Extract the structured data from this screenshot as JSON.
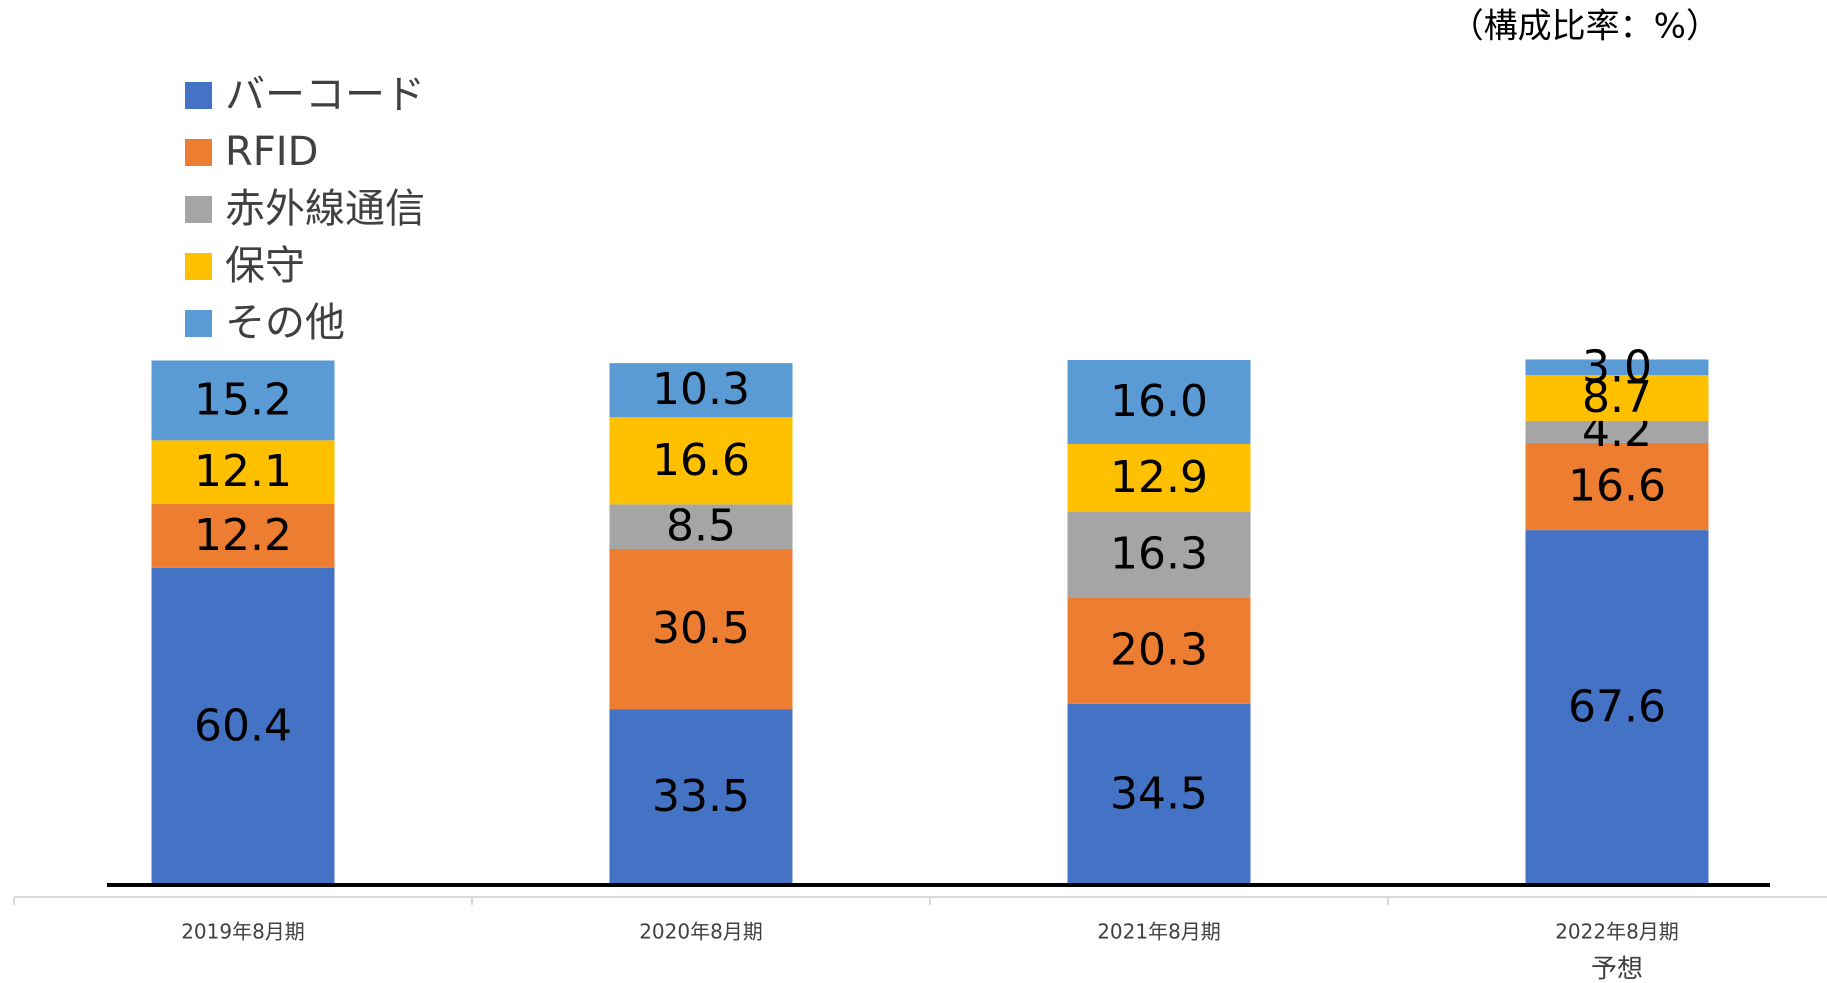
{
  "chart_data": {
    "type": "stacked_bar",
    "unit_label": "（構成比率：%）",
    "categories": [
      "2019年8月期",
      "2020年8月期",
      "2021年8月期",
      "2022年8月期"
    ],
    "annotations": [
      "予想"
    ],
    "ylim": [
      0,
      100
    ],
    "series": [
      {
        "name": "バーコード",
        "color": "#4472c4",
        "values": [
          60.4,
          33.5,
          34.5,
          67.6
        ],
        "value_labels": [
          "60.4",
          "33.5",
          "34.5",
          "67.6"
        ]
      },
      {
        "name": "RFID",
        "color": "#ed7d31",
        "values": [
          12.2,
          30.5,
          20.3,
          16.6
        ],
        "value_labels": [
          "12.2",
          "30.5",
          "20.3",
          "16.6"
        ]
      },
      {
        "name": "赤外線通信",
        "color": "#a5a5a5",
        "values": [
          null,
          8.5,
          16.3,
          4.2
        ],
        "value_labels": [
          null,
          "8.5",
          "16.3",
          "4.2"
        ]
      },
      {
        "name": "保守",
        "color": "#ffc000",
        "values": [
          12.1,
          16.6,
          12.9,
          8.7
        ],
        "value_labels": [
          "12.1",
          "16.6",
          "12.9",
          "8.7"
        ]
      },
      {
        "name": "その他",
        "color": "#5b9bd5",
        "values": [
          15.2,
          10.3,
          16.0,
          3.0
        ],
        "value_labels": [
          "15.2",
          "10.3",
          "16.0",
          "3.0"
        ]
      }
    ]
  }
}
